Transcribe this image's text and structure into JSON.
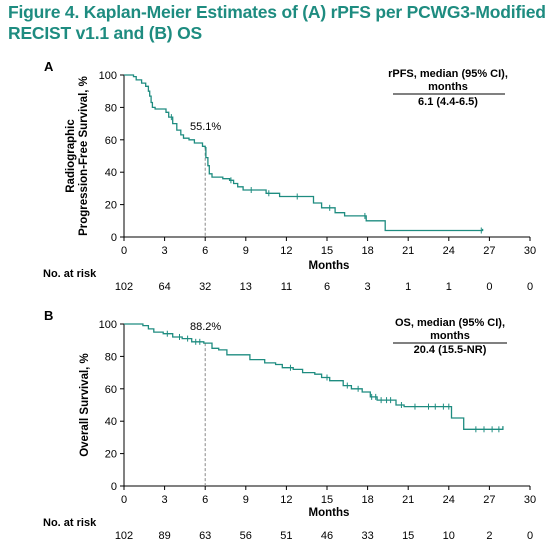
{
  "figure_title": "Figure 4. Kaplan-Meier Estimates of (A) rPFS per PCWG3-Modified RECIST v1.1 and (B) OS",
  "colors": {
    "title": "#1e8c80",
    "curve": "#1e8c80",
    "axis": "#000000",
    "ref_line": "#888888"
  },
  "panels": {
    "A": {
      "label": "A",
      "ylabel_line1": "Radiographic",
      "ylabel_line2": "Progression-Free Survival, %",
      "xlabel": "Months",
      "legend_line1": "rPFS, median (95% CI),",
      "legend_line2": "months",
      "legend_value": "6.1 (4.4-6.5)",
      "annotation": "55.1%",
      "risk_label": "No. at risk",
      "risk": [
        "102",
        "64",
        "32",
        "13",
        "11",
        "6",
        "3",
        "1",
        "1",
        "0",
        "0"
      ]
    },
    "B": {
      "label": "B",
      "ylabel_line1": "Overall Survival, %",
      "xlabel": "Months",
      "legend_line1": "OS, median (95% CI),",
      "legend_line2": "months",
      "legend_value": "20.4 (15.5-NR)",
      "annotation": "88.2%",
      "risk_label": "No. at risk",
      "risk": [
        "102",
        "89",
        "63",
        "56",
        "51",
        "46",
        "33",
        "15",
        "10",
        "2",
        "0"
      ]
    }
  },
  "chart_data": [
    {
      "type": "line",
      "title": "A",
      "xlabel": "Months",
      "ylabel": "Radiographic Progression-Free Survival, %",
      "xlim": [
        0,
        30
      ],
      "ylim": [
        0,
        100
      ],
      "xticks": [
        "0",
        "3",
        "6",
        "9",
        "12",
        "15",
        "18",
        "21",
        "24",
        "27",
        "30"
      ],
      "yticks": [
        "0",
        "20",
        "40",
        "60",
        "80",
        "100"
      ],
      "reference": {
        "x": 6,
        "y": 55.1,
        "label": "55.1%"
      },
      "series": [
        {
          "step": true,
          "points": [
            [
              0,
              100
            ],
            [
              0.7,
              100
            ],
            [
              0.7,
              99
            ],
            [
              0.9,
              99
            ],
            [
              0.9,
              97
            ],
            [
              1.3,
              97
            ],
            [
              1.3,
              95
            ],
            [
              1.6,
              95
            ],
            [
              1.6,
              93
            ],
            [
              1.8,
              93
            ],
            [
              1.8,
              90
            ],
            [
              1.9,
              90
            ],
            [
              1.9,
              87
            ],
            [
              2.0,
              87
            ],
            [
              2.0,
              83
            ],
            [
              2.1,
              83
            ],
            [
              2.1,
              80
            ],
            [
              2.3,
              80
            ],
            [
              2.3,
              79
            ],
            [
              3.1,
              79
            ],
            [
              3.1,
              77
            ],
            [
              3.3,
              77
            ],
            [
              3.3,
              74
            ],
            [
              3.6,
              74
            ],
            [
              3.6,
              70
            ],
            [
              3.9,
              70
            ],
            [
              3.9,
              66
            ],
            [
              4.2,
              66
            ],
            [
              4.2,
              63
            ],
            [
              4.4,
              63
            ],
            [
              4.4,
              61
            ],
            [
              4.8,
              61
            ],
            [
              4.8,
              60
            ],
            [
              5.2,
              60
            ],
            [
              5.2,
              58
            ],
            [
              5.8,
              58
            ],
            [
              5.8,
              56
            ],
            [
              6.0,
              56
            ],
            [
              6.0,
              55.1
            ],
            [
              6.05,
              55.1
            ],
            [
              6.05,
              49
            ],
            [
              6.2,
              49
            ],
            [
              6.2,
              44
            ],
            [
              6.3,
              44
            ],
            [
              6.3,
              39
            ],
            [
              6.5,
              39
            ],
            [
              6.5,
              37
            ],
            [
              7.3,
              37
            ],
            [
              7.3,
              36
            ],
            [
              7.8,
              36
            ],
            [
              7.8,
              35
            ],
            [
              8.1,
              35
            ],
            [
              8.1,
              33
            ],
            [
              8.4,
              33
            ],
            [
              8.4,
              31
            ],
            [
              8.8,
              31
            ],
            [
              8.8,
              29
            ],
            [
              10.5,
              29
            ],
            [
              10.5,
              27
            ],
            [
              11.5,
              27
            ],
            [
              11.5,
              25
            ],
            [
              14.0,
              25
            ],
            [
              14.0,
              21
            ],
            [
              14.6,
              21
            ],
            [
              14.6,
              18
            ],
            [
              15.6,
              18
            ],
            [
              15.6,
              15
            ],
            [
              16.3,
              15
            ],
            [
              16.3,
              13
            ],
            [
              17.9,
              13
            ],
            [
              17.9,
              10
            ],
            [
              19.3,
              10
            ],
            [
              19.3,
              4
            ],
            [
              26.5,
              4
            ],
            [
              26.5,
              5
            ]
          ],
          "censor_x": [
            3.5,
            7.9,
            9.4,
            10.7,
            12.8,
            15.2,
            17.8,
            26.4
          ]
        }
      ],
      "at_risk": [
        102,
        64,
        32,
        13,
        11,
        6,
        3,
        1,
        1,
        0,
        0
      ],
      "median_months": "6.1 (4.4-6.5)"
    },
    {
      "type": "line",
      "title": "B",
      "xlabel": "Months",
      "ylabel": "Overall Survival, %",
      "xlim": [
        0,
        30
      ],
      "ylim": [
        0,
        100
      ],
      "xticks": [
        "0",
        "3",
        "6",
        "9",
        "12",
        "15",
        "18",
        "21",
        "24",
        "27",
        "30"
      ],
      "yticks": [
        "0",
        "20",
        "40",
        "60",
        "80",
        "100"
      ],
      "reference": {
        "x": 6,
        "y": 88.2,
        "label": "88.2%"
      },
      "series": [
        {
          "step": true,
          "points": [
            [
              0,
              100
            ],
            [
              1.4,
              100
            ],
            [
              1.4,
              99
            ],
            [
              1.8,
              99
            ],
            [
              1.8,
              97
            ],
            [
              2.2,
              97
            ],
            [
              2.2,
              95
            ],
            [
              2.9,
              95
            ],
            [
              2.9,
              94
            ],
            [
              3.6,
              94
            ],
            [
              3.6,
              92
            ],
            [
              4.3,
              92
            ],
            [
              4.3,
              91
            ],
            [
              5.0,
              91
            ],
            [
              5.0,
              89
            ],
            [
              5.9,
              89
            ],
            [
              5.9,
              88.2
            ],
            [
              6.5,
              88.2
            ],
            [
              6.5,
              85
            ],
            [
              7.0,
              85
            ],
            [
              7.0,
              84
            ],
            [
              7.6,
              84
            ],
            [
              7.6,
              81
            ],
            [
              9.3,
              81
            ],
            [
              9.3,
              78
            ],
            [
              10.4,
              78
            ],
            [
              10.4,
              76
            ],
            [
              11.2,
              76
            ],
            [
              11.2,
              75
            ],
            [
              11.7,
              75
            ],
            [
              11.7,
              73
            ],
            [
              12.5,
              73
            ],
            [
              12.5,
              72
            ],
            [
              13.2,
              72
            ],
            [
              13.2,
              70
            ],
            [
              14.1,
              70
            ],
            [
              14.1,
              69
            ],
            [
              14.6,
              69
            ],
            [
              14.6,
              67
            ],
            [
              15.2,
              67
            ],
            [
              15.2,
              65
            ],
            [
              16.2,
              65
            ],
            [
              16.2,
              62
            ],
            [
              16.8,
              62
            ],
            [
              16.8,
              60
            ],
            [
              17.6,
              60
            ],
            [
              17.6,
              58
            ],
            [
              18.2,
              58
            ],
            [
              18.2,
              55
            ],
            [
              18.7,
              55
            ],
            [
              18.7,
              53
            ],
            [
              20.1,
              53
            ],
            [
              20.1,
              50
            ],
            [
              20.7,
              50
            ],
            [
              20.7,
              49
            ],
            [
              24.2,
              49
            ],
            [
              24.2,
              42
            ],
            [
              25.1,
              42
            ],
            [
              25.1,
              35
            ],
            [
              28.0,
              35
            ],
            [
              28.0,
              37
            ]
          ],
          "censor_x": [
            3.2,
            4.1,
            4.7,
            5.3,
            5.6,
            12.3,
            15.0,
            16.5,
            17.3,
            18.3,
            18.6,
            19.0,
            19.4,
            19.7,
            20.5,
            21.5,
            22.5,
            23.0,
            23.6,
            24.0,
            26.0,
            26.6,
            27.2,
            27.7
          ]
        }
      ],
      "at_risk": [
        102,
        89,
        63,
        56,
        51,
        46,
        33,
        15,
        10,
        2,
        0
      ],
      "median_months": "20.4 (15.5-NR)"
    }
  ]
}
